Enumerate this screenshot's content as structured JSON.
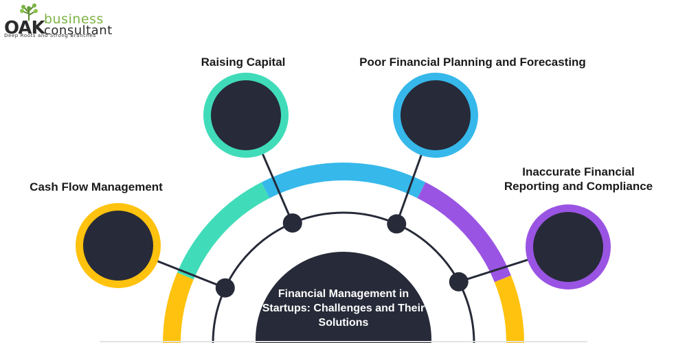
{
  "logo": {
    "brand_line1": "business",
    "brand_line2": "consultant",
    "mark": "OAK",
    "tagline": "Deep Roots and Strong Branches"
  },
  "center": {
    "title": "Financial Management in Startups: Challenges and Their Solutions"
  },
  "topics": [
    {
      "label": "Cash Flow Management",
      "color": "#ffc20e"
    },
    {
      "label": "Raising Capital",
      "color": "#40dcb9"
    },
    {
      "label": "Poor Financial Planning and Forecasting",
      "color": "#36b8ea"
    },
    {
      "label": "Inaccurate Financial Reporting and Compliance",
      "color": "#9a54e3"
    }
  ],
  "colors": {
    "node_fill": "#272a38",
    "connector": "#272a38"
  }
}
